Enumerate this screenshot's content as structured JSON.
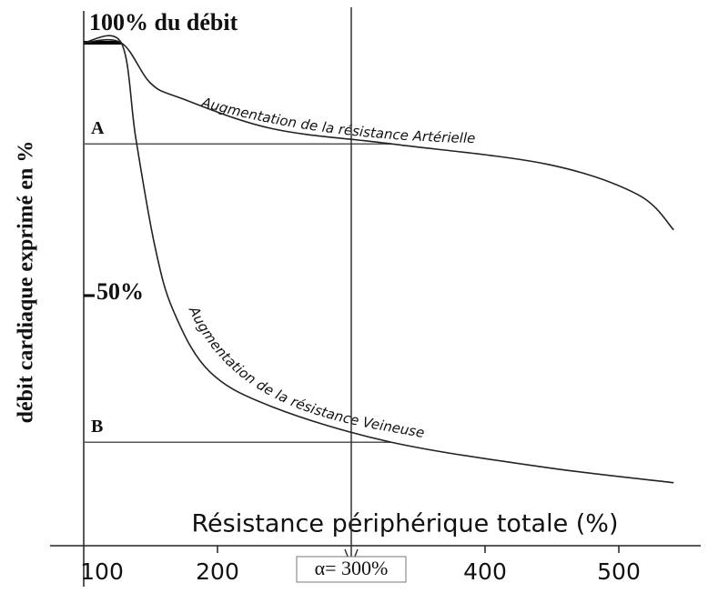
{
  "chart_data": {
    "type": "line",
    "ylabel": "débit cardiaque exprimé en %",
    "xlabel": "Résistance périphérique totale (%)",
    "xlim": [
      100,
      550
    ],
    "ylim": [
      0,
      100
    ],
    "xticks": [
      100,
      200,
      400,
      500
    ],
    "yticks": [
      {
        "value": 100,
        "label": "100% du débit"
      },
      {
        "value": 50,
        "label": "50%"
      }
    ],
    "reference_lines": [
      {
        "label": "A",
        "value": 80
      },
      {
        "label": "B",
        "value": 21
      }
    ],
    "vertical_marker": {
      "label": "α= 300%",
      "value": 300
    },
    "series": [
      {
        "name": "Augmentation de la résistance Artérielle",
        "color": "#222",
        "x": [
          100,
          128,
          150,
          173,
          241,
          330,
          446,
          514,
          541
        ],
        "values": [
          100,
          100,
          92,
          89,
          83,
          80,
          76,
          70,
          63
        ]
      },
      {
        "name": "Augmentation de la résistance Veineuse",
        "color": "#222",
        "x": [
          100,
          128,
          139,
          153,
          167,
          194,
          241,
          330,
          446,
          541
        ],
        "values": [
          100,
          100,
          81,
          60,
          47,
          35,
          28,
          21,
          16,
          13
        ]
      }
    ]
  }
}
